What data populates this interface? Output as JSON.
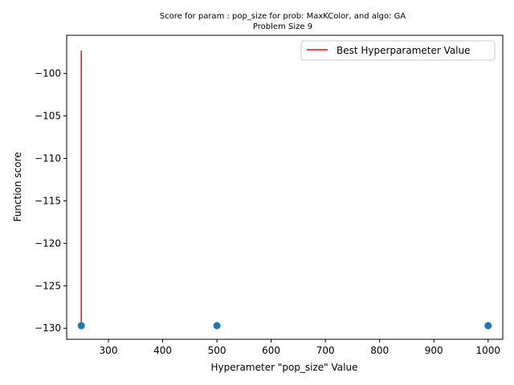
{
  "chart_data": {
    "type": "scatter",
    "title": "Score for param : pop_size for prob: MaxKColor, and algo: GA",
    "subtitle": "Problem Size 9",
    "xlabel": "Hyperameter \"pop_size\" Value",
    "ylabel": "Function score",
    "xlim": [
      223,
      1027
    ],
    "ylim": [
      -131.3,
      -95.5
    ],
    "xticks": [
      300,
      400,
      500,
      600,
      700,
      800,
      900,
      1000
    ],
    "yticks": [
      -100,
      -105,
      -110,
      -115,
      -120,
      -125,
      -130
    ],
    "xtick_labels": [
      "300",
      "400",
      "500",
      "600",
      "700",
      "800",
      "900",
      "1000"
    ],
    "ytick_labels": [
      "−100",
      "−105",
      "−110",
      "−115",
      "−120",
      "−125",
      "−130"
    ],
    "points": [
      {
        "x": 250,
        "y": -129.7
      },
      {
        "x": 500,
        "y": -129.7
      },
      {
        "x": 1000,
        "y": -129.7
      }
    ],
    "best_line": {
      "x": 250,
      "y_from": -129.7,
      "y_to": -97.3
    },
    "legend": {
      "label": "Best Hyperparameter Value",
      "placement": "top-right"
    },
    "grid": false,
    "colors": {
      "points": "#1f77b4",
      "best_line": "#d62728",
      "line": "#ff0000"
    }
  }
}
